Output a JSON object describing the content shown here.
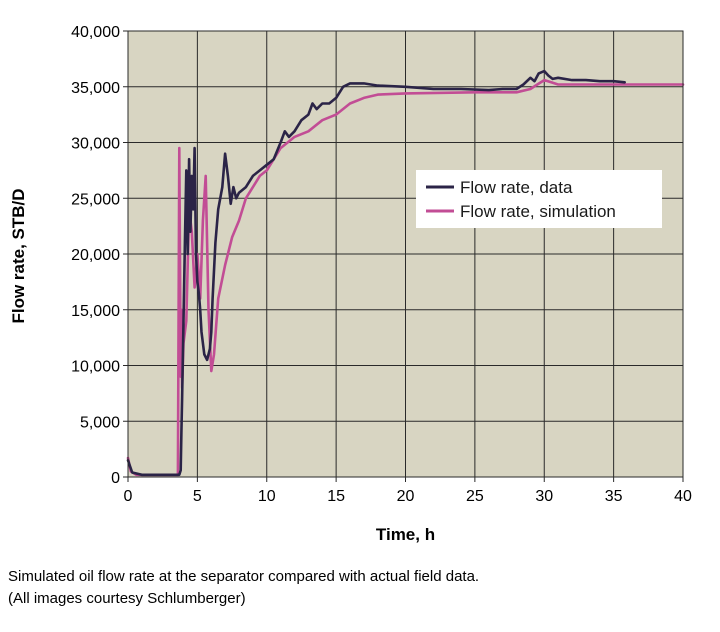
{
  "chart_data": {
    "type": "line",
    "xlabel": "Time, h",
    "ylabel": "Flow rate, STB/D",
    "xlim": [
      0,
      40
    ],
    "ylim": [
      0,
      40000
    ],
    "x_ticks": [
      0,
      5,
      10,
      15,
      20,
      25,
      30,
      35,
      40
    ],
    "y_ticks": [
      0,
      5000,
      10000,
      15000,
      20000,
      25000,
      30000,
      35000,
      40000
    ],
    "x_tick_labels": [
      "0",
      "5",
      "10",
      "15",
      "20",
      "25",
      "30",
      "35",
      "40"
    ],
    "y_tick_labels": [
      "0",
      "5,000",
      "10,000",
      "15,000",
      "20,000",
      "25,000",
      "30,000",
      "35,000",
      "40,000"
    ],
    "grid": true,
    "legend_position": "right",
    "series": [
      {
        "name": "Flow rate, data",
        "color": "#2b2447",
        "x": [
          0.0,
          0.3,
          1.0,
          2.0,
          3.0,
          3.7,
          3.8,
          3.85,
          3.9,
          4.0,
          4.1,
          4.2,
          4.3,
          4.4,
          4.5,
          4.6,
          4.7,
          4.8,
          4.9,
          5.0,
          5.1,
          5.2,
          5.3,
          5.5,
          5.7,
          5.9,
          6.0,
          6.1,
          6.3,
          6.5,
          6.8,
          7.0,
          7.2,
          7.4,
          7.6,
          7.8,
          8.0,
          8.5,
          9.0,
          9.5,
          10.0,
          10.5,
          11.0,
          11.3,
          11.6,
          12.0,
          12.5,
          13.0,
          13.3,
          13.6,
          14.0,
          14.5,
          15.0,
          15.5,
          16.0,
          16.5,
          17.0,
          18.0,
          20.0,
          22.0,
          24.0,
          26.0,
          27.0,
          28.0,
          28.5,
          29.0,
          29.3,
          29.6,
          30.0,
          30.3,
          30.6,
          31.0,
          32.0,
          33.0,
          34.0,
          35.0,
          35.8
        ],
        "y": [
          1500,
          400,
          200,
          200,
          200,
          200,
          600,
          4000,
          7000,
          14000,
          21000,
          27500,
          20000,
          28500,
          22000,
          27000,
          24000,
          29500,
          20000,
          17500,
          16500,
          15000,
          13000,
          11000,
          10500,
          11500,
          13000,
          16000,
          21000,
          24000,
          26000,
          29000,
          27000,
          24500,
          26000,
          25000,
          25500,
          26000,
          27000,
          27500,
          28000,
          28500,
          30000,
          31000,
          30500,
          31000,
          32000,
          32500,
          33500,
          33000,
          33500,
          33500,
          34000,
          35000,
          35300,
          35300,
          35300,
          35100,
          35000,
          34800,
          34800,
          34700,
          34800,
          34800,
          35200,
          35800,
          35500,
          36200,
          36400,
          36000,
          35700,
          35800,
          35600,
          35600,
          35500,
          35500,
          35400
        ]
      },
      {
        "name": "Flow rate, simulation",
        "color": "#c24d95",
        "x": [
          0.0,
          0.2,
          0.6,
          1.0,
          2.0,
          3.0,
          3.5,
          3.6,
          3.7,
          3.8,
          3.85,
          3.9,
          4.0,
          4.2,
          4.4,
          4.6,
          4.8,
          5.0,
          5.2,
          5.4,
          5.6,
          5.8,
          6.0,
          6.2,
          6.5,
          7.0,
          7.5,
          8.0,
          8.5,
          9.0,
          9.5,
          10.0,
          10.5,
          11.0,
          11.5,
          12.0,
          13.0,
          14.0,
          15.0,
          16.0,
          17.0,
          18.0,
          20.0,
          25.0,
          28.0,
          29.0,
          29.5,
          30.0,
          30.5,
          31.0,
          33.0,
          36.0,
          40.0
        ],
        "y": [
          1700,
          500,
          200,
          200,
          200,
          200,
          200,
          200,
          29500,
          9000,
          15000,
          8000,
          12000,
          14000,
          24000,
          22000,
          17000,
          20000,
          16000,
          23000,
          27000,
          15000,
          9500,
          11000,
          16000,
          19000,
          21500,
          23000,
          25000,
          26000,
          27000,
          27500,
          28500,
          29500,
          30000,
          30500,
          31000,
          32000,
          32500,
          33500,
          34000,
          34300,
          34400,
          34500,
          34500,
          34800,
          35200,
          35600,
          35400,
          35200,
          35200,
          35200,
          35200
        ]
      }
    ]
  },
  "caption": {
    "line1": "Simulated oil flow rate at the separator compared with actual field data.",
    "line2": "(All images courtesy Schlumberger)"
  },
  "colors": {
    "plot_background": "#d8d5c2",
    "grid": "#2a2a2a",
    "legend_background": "#ffffff"
  }
}
